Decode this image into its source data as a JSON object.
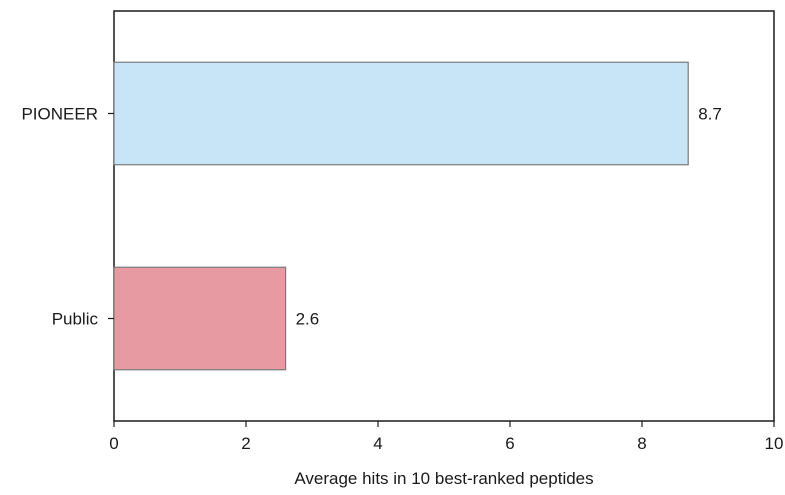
{
  "chart_data": {
    "type": "bar",
    "orientation": "horizontal",
    "categories": [
      "PIONEER",
      "Public"
    ],
    "values": [
      8.7,
      2.6
    ],
    "value_labels": [
      "8.7",
      "2.6"
    ],
    "title": "",
    "xlabel": "Average hits in 10 best-ranked peptides",
    "ylabel": "",
    "xlim": [
      0,
      10
    ],
    "xticks": [
      0,
      2,
      4,
      6,
      8,
      10
    ],
    "xtick_labels": [
      "0",
      "2",
      "4",
      "6",
      "8",
      "10"
    ],
    "grid": false,
    "legend": "none",
    "colors": {
      "PIONEER": "#c7e5f7",
      "Public": "#e79aa1",
      "bar_edge": "#7a7a7a",
      "axis": "#1a1a1a"
    }
  }
}
